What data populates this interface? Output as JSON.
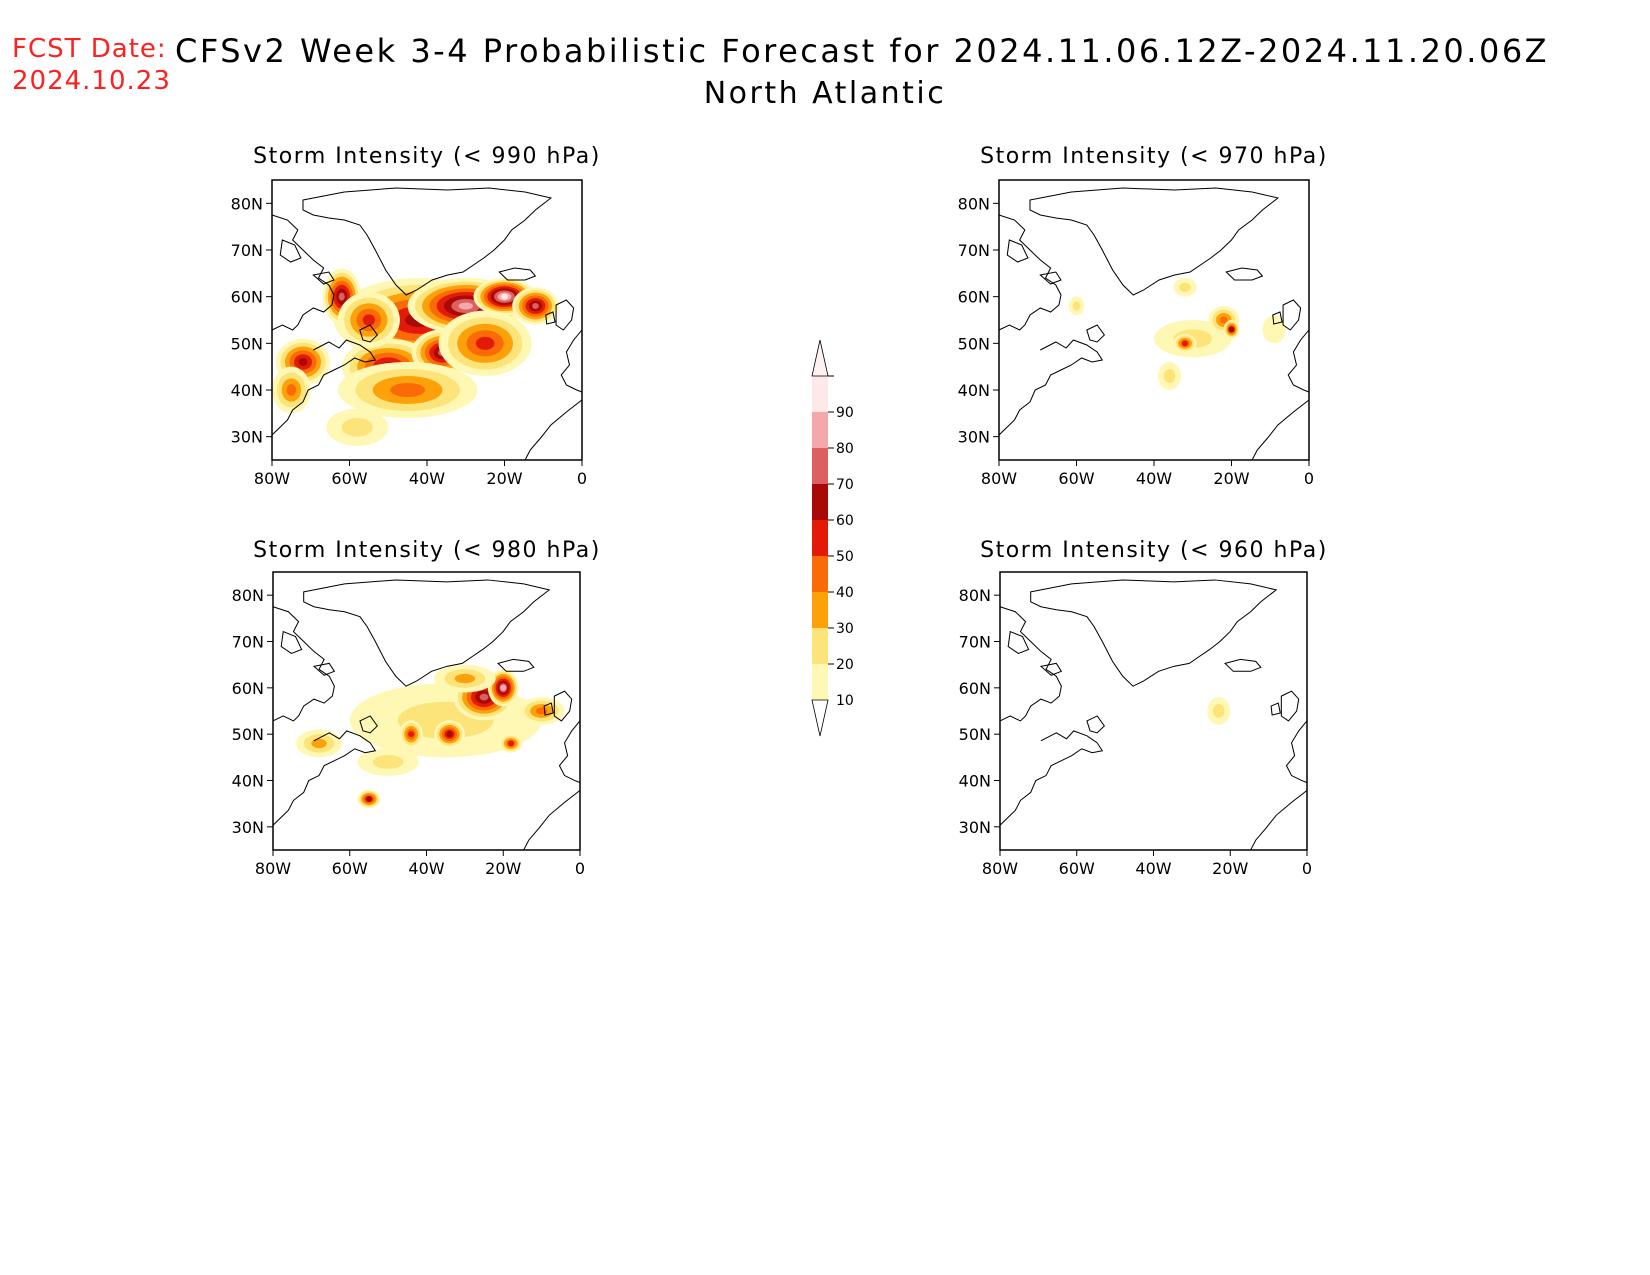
{
  "header": {
    "fcst_label": "FCST Date:",
    "fcst_date": "2024.10.23",
    "title": "CFSv2 Week 3-4 Probabilistic Forecast for 2024.11.06.12Z-2024.11.20.06Z",
    "region": "North Atlantic"
  },
  "colorbar": {
    "levels": [
      10,
      20,
      30,
      40,
      50,
      60,
      70,
      80,
      90
    ],
    "labels": [
      "10",
      "20",
      "30",
      "40",
      "50",
      "60",
      "70",
      "80",
      "90"
    ],
    "colors": [
      "#fff8b4",
      "#fde47a",
      "#fca10a",
      "#fa6a06",
      "#e41a08",
      "#a80a08",
      "#dc6060",
      "#f4a8aa",
      "#fde8ea"
    ]
  },
  "axes": {
    "lon_labels": [
      "80W",
      "60W",
      "40W",
      "20W",
      "0"
    ],
    "lon_values": [
      -80,
      -60,
      -40,
      -20,
      0
    ],
    "lat_labels": [
      "80N",
      "70N",
      "60N",
      "50N",
      "40N",
      "30N"
    ],
    "lat_values": [
      80,
      70,
      60,
      50,
      40,
      30
    ],
    "lon_range": [
      -80,
      0
    ],
    "lat_range": [
      25,
      85
    ]
  },
  "panels": [
    {
      "id": "p990",
      "title": "Storm Intensity (< 990 hPa)",
      "blobs": [
        {
          "lon": -42,
          "lat": 55,
          "rx": 22,
          "ry": 9,
          "v": 60
        },
        {
          "lon": -30,
          "lat": 58,
          "rx": 15,
          "ry": 6,
          "v": 85
        },
        {
          "lon": -20,
          "lat": 60,
          "rx": 8,
          "ry": 4,
          "v": 90
        },
        {
          "lon": -50,
          "lat": 45,
          "rx": 12,
          "ry": 6,
          "v": 65
        },
        {
          "lon": -62,
          "lat": 60,
          "rx": 5,
          "ry": 6,
          "v": 70
        },
        {
          "lon": -72,
          "lat": 46,
          "rx": 7,
          "ry": 5,
          "v": 60
        },
        {
          "lon": -36,
          "lat": 48,
          "rx": 8,
          "ry": 5,
          "v": 75
        },
        {
          "lon": -45,
          "lat": 40,
          "rx": 18,
          "ry": 6,
          "v": 45
        },
        {
          "lon": -58,
          "lat": 32,
          "rx": 8,
          "ry": 4,
          "v": 22
        },
        {
          "lon": -25,
          "lat": 50,
          "rx": 12,
          "ry": 7,
          "v": 55
        },
        {
          "lon": -12,
          "lat": 58,
          "rx": 6,
          "ry": 4,
          "v": 70
        },
        {
          "lon": -55,
          "lat": 55,
          "rx": 8,
          "ry": 6,
          "v": 55
        },
        {
          "lon": -75,
          "lat": 40,
          "rx": 5,
          "ry": 5,
          "v": 40
        }
      ]
    },
    {
      "id": "p970",
      "title": "Storm Intensity (< 970 hPa)",
      "blobs": [
        {
          "lon": -30,
          "lat": 51,
          "rx": 10,
          "ry": 4,
          "v": 25
        },
        {
          "lon": -22,
          "lat": 55,
          "rx": 4,
          "ry": 3,
          "v": 45
        },
        {
          "lon": -32,
          "lat": 50,
          "rx": 3,
          "ry": 2,
          "v": 55
        },
        {
          "lon": -20,
          "lat": 53,
          "rx": 2,
          "ry": 2,
          "v": 60
        },
        {
          "lon": -36,
          "lat": 43,
          "rx": 3,
          "ry": 3,
          "v": 25
        },
        {
          "lon": -32,
          "lat": 62,
          "rx": 3,
          "ry": 2,
          "v": 20
        },
        {
          "lon": -60,
          "lat": 58,
          "rx": 2,
          "ry": 2,
          "v": 20
        },
        {
          "lon": -9,
          "lat": 53,
          "rx": 3,
          "ry": 3,
          "v": 18
        }
      ]
    },
    {
      "id": "p980",
      "title": "Storm Intensity (< 980 hPa)",
      "blobs": [
        {
          "lon": -35,
          "lat": 53,
          "rx": 25,
          "ry": 8,
          "v": 22
        },
        {
          "lon": -25,
          "lat": 58,
          "rx": 8,
          "ry": 5,
          "v": 70
        },
        {
          "lon": -20,
          "lat": 60,
          "rx": 4,
          "ry": 4,
          "v": 85
        },
        {
          "lon": -34,
          "lat": 50,
          "rx": 4,
          "ry": 3,
          "v": 65
        },
        {
          "lon": -44,
          "lat": 50,
          "rx": 3,
          "ry": 3,
          "v": 55
        },
        {
          "lon": -18,
          "lat": 48,
          "rx": 3,
          "ry": 2,
          "v": 55
        },
        {
          "lon": -55,
          "lat": 36,
          "rx": 3,
          "ry": 2,
          "v": 60
        },
        {
          "lon": -68,
          "lat": 48,
          "rx": 6,
          "ry": 3,
          "v": 35
        },
        {
          "lon": -50,
          "lat": 44,
          "rx": 8,
          "ry": 3,
          "v": 20
        },
        {
          "lon": -10,
          "lat": 55,
          "rx": 6,
          "ry": 3,
          "v": 40
        },
        {
          "lon": -30,
          "lat": 62,
          "rx": 8,
          "ry": 3,
          "v": 35
        }
      ]
    },
    {
      "id": "p960",
      "title": "Storm Intensity (< 960 hPa)",
      "blobs": [
        {
          "lon": -23,
          "lat": 55,
          "rx": 3,
          "ry": 3,
          "v": 20
        }
      ]
    }
  ]
}
